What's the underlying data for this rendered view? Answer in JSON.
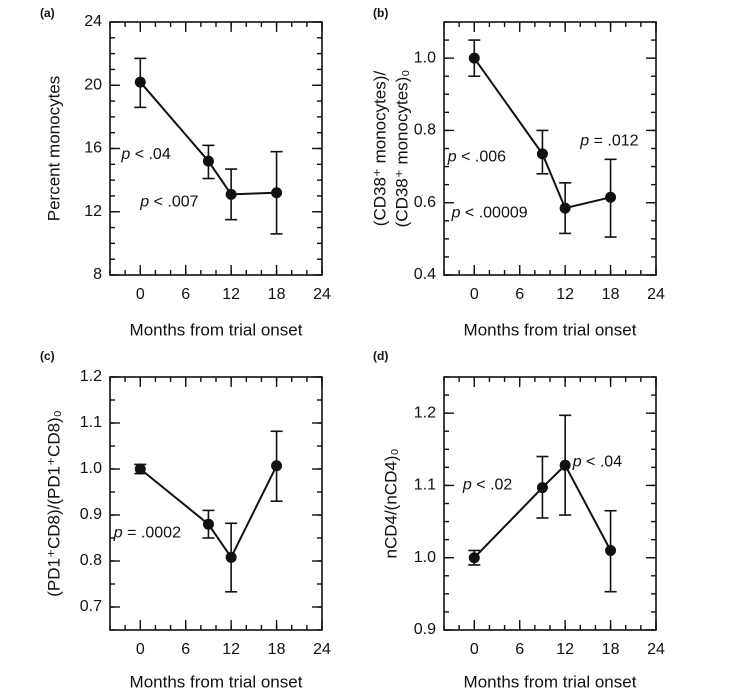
{
  "chart_data": [
    {
      "id": "a",
      "panel_label": "(a)",
      "type": "line",
      "ylabel": [
        "Percent monocytes"
      ],
      "xlabel": "Months from trial onset",
      "xlim": [
        -4,
        24
      ],
      "ylim": [
        8,
        24
      ],
      "xticks": [
        0,
        6,
        12,
        18,
        24
      ],
      "yticks": [
        8,
        12,
        16,
        20,
        24
      ],
      "ytick_decimals": 0,
      "ytick_labels_shown": [
        8,
        12,
        16,
        20,
        24
      ],
      "minor_y_step": 1,
      "minor_x_step": 2,
      "points": [
        {
          "x": 0,
          "y": 20.2,
          "lo": 18.6,
          "hi": 21.7
        },
        {
          "x": 9,
          "y": 15.2,
          "lo": 14.1,
          "hi": 16.2
        },
        {
          "x": 12,
          "y": 13.1,
          "lo": 11.5,
          "hi": 14.7
        },
        {
          "x": 18,
          "y": 13.2,
          "lo": 10.6,
          "hi": 15.8
        }
      ],
      "annotations": [
        {
          "text": "p < .04",
          "x": -2.5,
          "y": 15.6
        },
        {
          "text": "p < .007",
          "x": 0,
          "y": 12.6
        }
      ]
    },
    {
      "id": "b",
      "panel_label": "(b)",
      "type": "line",
      "ylabel": [
        "(CD38⁺ monocytes)/",
        "(CD38⁺ monocytes)₀"
      ],
      "xlabel": "Months from trial onset",
      "xlim": [
        -4,
        24
      ],
      "ylim": [
        0.4,
        1.1
      ],
      "xticks": [
        0,
        6,
        12,
        18,
        24
      ],
      "yticks": [
        0.4,
        0.6,
        0.8,
        1.0
      ],
      "ytick_decimals": 1,
      "minor_y_step": 0.05,
      "minor_x_step": 2,
      "points": [
        {
          "x": 0,
          "y": 1.0,
          "lo": 0.95,
          "hi": 1.05
        },
        {
          "x": 9,
          "y": 0.735,
          "lo": 0.68,
          "hi": 0.8
        },
        {
          "x": 12,
          "y": 0.585,
          "lo": 0.515,
          "hi": 0.655
        },
        {
          "x": 18,
          "y": 0.615,
          "lo": 0.505,
          "hi": 0.72
        }
      ],
      "annotations": [
        {
          "text": "p < .006",
          "x": -3.5,
          "y": 0.725
        },
        {
          "text": "p < .00009",
          "x": -3,
          "y": 0.57
        },
        {
          "text": "p = .012",
          "x": 14,
          "y": 0.77
        }
      ]
    },
    {
      "id": "c",
      "panel_label": "(c)",
      "type": "line",
      "ylabel": [
        "(PD1⁺CD8)/(PD1⁺CD8)₀"
      ],
      "xlabel": "Months from trial onset",
      "xlim": [
        -4,
        24
      ],
      "ylim": [
        0.65,
        1.2
      ],
      "xticks": [
        0,
        6,
        12,
        18,
        24
      ],
      "yticks": [
        0.7,
        0.8,
        0.9,
        1.0,
        1.1,
        1.2
      ],
      "ytick_decimals": 1,
      "minor_y_step": 0.05,
      "minor_x_step": 2,
      "points": [
        {
          "x": 0,
          "y": 1.0,
          "lo": 0.99,
          "hi": 1.01
        },
        {
          "x": 9,
          "y": 0.88,
          "lo": 0.85,
          "hi": 0.91
        },
        {
          "x": 12,
          "y": 0.808,
          "lo": 0.733,
          "hi": 0.882
        },
        {
          "x": 18,
          "y": 1.007,
          "lo": 0.93,
          "hi": 1.082
        }
      ],
      "annotations": [
        {
          "text": "p = .0002",
          "x": -3.5,
          "y": 0.86
        }
      ]
    },
    {
      "id": "d",
      "panel_label": "(d)",
      "type": "line",
      "ylabel": [
        "nCD4/(nCD4)₀"
      ],
      "xlabel": "Months from trial onset",
      "xlim": [
        -4,
        24
      ],
      "ylim": [
        0.9,
        1.25
      ],
      "xticks": [
        0,
        6,
        12,
        18,
        24
      ],
      "yticks": [
        0.9,
        1.0,
        1.1,
        1.2
      ],
      "ytick_decimals": 1,
      "minor_y_step": 0.025,
      "minor_x_step": 2,
      "points": [
        {
          "x": 0,
          "y": 1.0,
          "lo": 0.99,
          "hi": 1.01
        },
        {
          "x": 9,
          "y": 1.097,
          "lo": 1.055,
          "hi": 1.14
        },
        {
          "x": 12,
          "y": 1.128,
          "lo": 1.059,
          "hi": 1.197
        },
        {
          "x": 18,
          "y": 1.01,
          "lo": 0.953,
          "hi": 1.065
        }
      ],
      "annotations": [
        {
          "text": "p < .02",
          "x": -1.5,
          "y": 1.1
        },
        {
          "text": "p < .04",
          "x": 13,
          "y": 1.132
        }
      ]
    }
  ]
}
